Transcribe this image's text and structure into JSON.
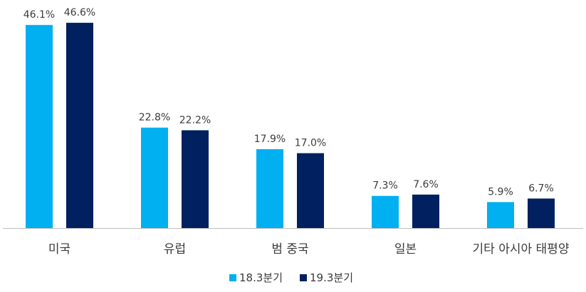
{
  "chart_data": {
    "type": "bar",
    "categories": [
      "미국",
      "유럽",
      "범 중국",
      "일본",
      "기타 아시아 태평양"
    ],
    "series": [
      {
        "name": "18.3분기",
        "values": [
          46.1,
          22.8,
          17.9,
          7.3,
          5.9
        ],
        "labels": [
          "46.1%",
          "22.8%",
          "17.9%",
          "7.3%",
          "5.9%"
        ],
        "color": "#00b0f0"
      },
      {
        "name": "19.3분기",
        "values": [
          46.6,
          22.2,
          17.0,
          7.6,
          6.7
        ],
        "labels": [
          "46.6%",
          "22.2%",
          "17.0%",
          "7.6%",
          "6.7%"
        ],
        "color": "#002060"
      }
    ],
    "ylim": [
      0,
      50
    ],
    "unit": "%",
    "grid": false,
    "legend_position": "bottom"
  }
}
